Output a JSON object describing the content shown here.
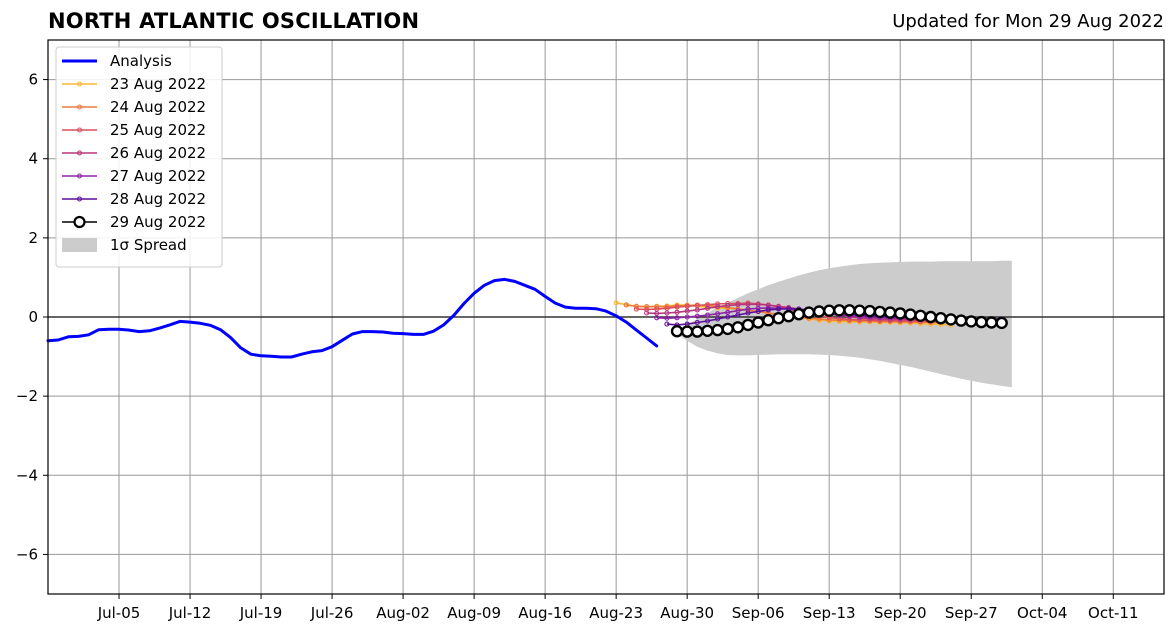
{
  "header": {
    "title": "NORTH ATLANTIC OSCILLATION",
    "updated": "Updated for Mon 29 Aug 2022"
  },
  "chart_data": {
    "type": "line",
    "title": "NORTH ATLANTIC OSCILLATION",
    "subtitle": "Updated for Mon 29 Aug 2022",
    "xlabel": "",
    "ylabel": "",
    "xlim": [
      "2022-06-28",
      "2022-10-16"
    ],
    "ylim": [
      -7,
      7
    ],
    "grid": true,
    "legend_position": "top-left",
    "x_ticks": [
      {
        "date": "2022-07-05",
        "label": "Jul-05"
      },
      {
        "date": "2022-07-12",
        "label": "Jul-12"
      },
      {
        "date": "2022-07-19",
        "label": "Jul-19"
      },
      {
        "date": "2022-07-26",
        "label": "Jul-26"
      },
      {
        "date": "2022-08-02",
        "label": "Aug-02"
      },
      {
        "date": "2022-08-09",
        "label": "Aug-09"
      },
      {
        "date": "2022-08-16",
        "label": "Aug-16"
      },
      {
        "date": "2022-08-23",
        "label": "Aug-23"
      },
      {
        "date": "2022-08-30",
        "label": "Aug-30"
      },
      {
        "date": "2022-09-06",
        "label": "Sep-06"
      },
      {
        "date": "2022-09-13",
        "label": "Sep-13"
      },
      {
        "date": "2022-09-20",
        "label": "Sep-20"
      },
      {
        "date": "2022-09-27",
        "label": "Sep-27"
      },
      {
        "date": "2022-10-04",
        "label": "Oct-04"
      },
      {
        "date": "2022-10-11",
        "label": "Oct-11"
      }
    ],
    "y_ticks": [
      {
        "value": 6,
        "label": "6"
      },
      {
        "value": 4,
        "label": "4"
      },
      {
        "value": 2,
        "label": "2"
      },
      {
        "value": 0,
        "label": "0"
      },
      {
        "value": -2,
        "label": "−2"
      },
      {
        "value": -4,
        "label": "−4"
      },
      {
        "value": -6,
        "label": "−6"
      }
    ],
    "series": [
      {
        "name": "Analysis",
        "color": "#0000ff",
        "kind": "analysis",
        "points": [
          [
            "2022-06-28",
            -0.6
          ],
          [
            "2022-06-29",
            -0.58
          ],
          [
            "2022-06-30",
            -0.5
          ],
          [
            "2022-07-01",
            -0.49
          ],
          [
            "2022-07-02",
            -0.45
          ],
          [
            "2022-07-03",
            -0.32
          ],
          [
            "2022-07-04",
            -0.31
          ],
          [
            "2022-07-05",
            -0.31
          ],
          [
            "2022-07-06",
            -0.33
          ],
          [
            "2022-07-07",
            -0.37
          ],
          [
            "2022-07-08",
            -0.35
          ],
          [
            "2022-07-09",
            -0.28
          ],
          [
            "2022-07-10",
            -0.2
          ],
          [
            "2022-07-11",
            -0.11
          ],
          [
            "2022-07-12",
            -0.13
          ],
          [
            "2022-07-13",
            -0.16
          ],
          [
            "2022-07-14",
            -0.21
          ],
          [
            "2022-07-15",
            -0.32
          ],
          [
            "2022-07-16",
            -0.52
          ],
          [
            "2022-07-17",
            -0.78
          ],
          [
            "2022-07-18",
            -0.94
          ],
          [
            "2022-07-19",
            -0.98
          ],
          [
            "2022-07-20",
            -0.99
          ],
          [
            "2022-07-21",
            -1.01
          ],
          [
            "2022-07-22",
            -1.01
          ],
          [
            "2022-07-23",
            -0.94
          ],
          [
            "2022-07-24",
            -0.88
          ],
          [
            "2022-07-25",
            -0.85
          ],
          [
            "2022-07-26",
            -0.75
          ],
          [
            "2022-07-27",
            -0.59
          ],
          [
            "2022-07-28",
            -0.43
          ],
          [
            "2022-07-29",
            -0.37
          ],
          [
            "2022-07-30",
            -0.37
          ],
          [
            "2022-07-31",
            -0.38
          ],
          [
            "2022-08-01",
            -0.41
          ],
          [
            "2022-08-02",
            -0.42
          ],
          [
            "2022-08-03",
            -0.44
          ],
          [
            "2022-08-04",
            -0.44
          ],
          [
            "2022-08-05",
            -0.36
          ],
          [
            "2022-08-06",
            -0.2
          ],
          [
            "2022-08-07",
            0.04
          ],
          [
            "2022-08-08",
            0.34
          ],
          [
            "2022-08-09",
            0.6
          ],
          [
            "2022-08-10",
            0.8
          ],
          [
            "2022-08-11",
            0.92
          ],
          [
            "2022-08-12",
            0.95
          ],
          [
            "2022-08-13",
            0.9
          ],
          [
            "2022-08-14",
            0.8
          ],
          [
            "2022-08-15",
            0.7
          ],
          [
            "2022-08-16",
            0.52
          ],
          [
            "2022-08-17",
            0.35
          ],
          [
            "2022-08-18",
            0.25
          ],
          [
            "2022-08-19",
            0.22
          ],
          [
            "2022-08-20",
            0.22
          ],
          [
            "2022-08-21",
            0.21
          ],
          [
            "2022-08-22",
            0.15
          ],
          [
            "2022-08-23",
            0.03
          ],
          [
            "2022-08-24",
            -0.13
          ],
          [
            "2022-08-25",
            -0.33
          ],
          [
            "2022-08-26",
            -0.53
          ],
          [
            "2022-08-27",
            -0.73
          ]
        ]
      },
      {
        "name": "23 Aug 2022",
        "color": "#f9b738",
        "kind": "forecast",
        "start": "2022-08-23",
        "values": [
          0.36,
          0.31,
          0.27,
          0.26,
          0.27,
          0.28,
          0.3,
          0.3,
          0.27,
          0.25,
          0.23,
          0.22,
          0.2,
          0.17,
          0.14,
          0.1,
          0.06,
          0.02,
          -0.02,
          -0.05,
          -0.08,
          -0.1,
          -0.11,
          -0.12,
          -0.13,
          -0.13,
          -0.14,
          -0.14,
          -0.15,
          -0.15,
          -0.17,
          -0.18,
          -0.19,
          -0.2
        ]
      },
      {
        "name": "24 Aug 2022",
        "color": "#ee7a3a",
        "kind": "forecast",
        "start": "2022-08-24",
        "values": [
          0.3,
          0.27,
          0.26,
          0.26,
          0.26,
          0.28,
          0.29,
          0.3,
          0.29,
          0.27,
          0.24,
          0.2,
          0.17,
          0.14,
          0.1,
          0.06,
          0.03,
          0.0,
          -0.03,
          -0.05,
          -0.07,
          -0.08,
          -0.09,
          -0.1,
          -0.1,
          -0.11,
          -0.11,
          -0.12,
          -0.13,
          -0.13,
          -0.14,
          -0.14,
          -0.15,
          -0.15,
          -0.15
        ]
      },
      {
        "name": "25 Aug 2022",
        "color": "#dc4e5e",
        "kind": "forecast",
        "start": "2022-08-25",
        "values": [
          0.2,
          0.19,
          0.2,
          0.22,
          0.25,
          0.27,
          0.29,
          0.31,
          0.33,
          0.34,
          0.34,
          0.35,
          0.33,
          0.3,
          0.26,
          0.2,
          0.14,
          0.08,
          0.03,
          -0.01,
          -0.04,
          -0.06,
          -0.07,
          -0.08,
          -0.09,
          -0.09,
          -0.1,
          -0.1,
          -0.11,
          -0.11,
          -0.12,
          -0.12,
          -0.12,
          -0.13,
          -0.13
        ]
      },
      {
        "name": "26 Aug 2022",
        "color": "#b6367e",
        "kind": "forecast",
        "start": "2022-08-26",
        "values": [
          0.1,
          0.09,
          0.1,
          0.12,
          0.15,
          0.18,
          0.22,
          0.26,
          0.29,
          0.31,
          0.32,
          0.32,
          0.3,
          0.27,
          0.24,
          0.2,
          0.16,
          0.12,
          0.08,
          0.04,
          0.01,
          -0.02,
          -0.04,
          -0.05,
          -0.06,
          -0.06,
          -0.07,
          -0.07,
          -0.08,
          -0.08,
          -0.08,
          -0.08,
          -0.09,
          -0.09,
          -0.09
        ]
      },
      {
        "name": "27 Aug 2022",
        "color": "#8e24a8",
        "kind": "forecast",
        "start": "2022-08-27",
        "values": [
          -0.02,
          -0.03,
          -0.02,
          0.0,
          0.02,
          0.05,
          0.08,
          0.12,
          0.16,
          0.2,
          0.22,
          0.23,
          0.22,
          0.2,
          0.17,
          0.13,
          0.1,
          0.07,
          0.05,
          0.03,
          0.01,
          0.0,
          -0.01,
          -0.02,
          -0.03,
          -0.04,
          -0.04,
          -0.05,
          -0.05,
          -0.05,
          -0.06,
          -0.06,
          -0.06,
          -0.06,
          -0.06
        ]
      },
      {
        "name": "28 Aug 2022",
        "color": "#5b0f9a",
        "kind": "forecast",
        "start": "2022-08-28",
        "values": [
          -0.18,
          -0.2,
          -0.18,
          -0.14,
          -0.1,
          -0.05,
          0.0,
          0.05,
          0.1,
          0.14,
          0.18,
          0.2,
          0.21,
          0.2,
          0.18,
          0.15,
          0.12,
          0.09,
          0.07,
          0.05,
          0.03,
          0.02,
          0.01,
          0.0,
          -0.01,
          -0.02,
          -0.03,
          -0.03,
          -0.04,
          -0.04,
          -0.05,
          -0.05,
          -0.05,
          -0.05
        ]
      },
      {
        "name": "29 Aug 2022",
        "color": "#000000",
        "kind": "current",
        "start": "2022-08-29",
        "values": [
          -0.36,
          -0.37,
          -0.37,
          -0.35,
          -0.33,
          -0.3,
          -0.26,
          -0.2,
          -0.14,
          -0.08,
          -0.03,
          0.02,
          0.07,
          0.11,
          0.14,
          0.16,
          0.17,
          0.17,
          0.16,
          0.15,
          0.13,
          0.11,
          0.09,
          0.06,
          0.03,
          0.0,
          -0.03,
          -0.06,
          -0.09,
          -0.11,
          -0.13,
          -0.14,
          -0.15
        ]
      }
    ],
    "spread": {
      "name": "1σ Spread",
      "color": "#cccccc",
      "start": "2022-08-29",
      "upper": [
        -0.32,
        -0.2,
        -0.05,
        0.1,
        0.24,
        0.36,
        0.48,
        0.6,
        0.7,
        0.8,
        0.89,
        0.97,
        1.05,
        1.12,
        1.18,
        1.23,
        1.27,
        1.31,
        1.34,
        1.36,
        1.37,
        1.38,
        1.39,
        1.4,
        1.4,
        1.4,
        1.41,
        1.41,
        1.41,
        1.41,
        1.41,
        1.41,
        1.42,
        1.42
      ],
      "lower": [
        -0.42,
        -0.6,
        -0.75,
        -0.85,
        -0.92,
        -0.96,
        -0.97,
        -0.97,
        -0.96,
        -0.95,
        -0.94,
        -0.94,
        -0.94,
        -0.94,
        -0.95,
        -0.96,
        -0.98,
        -1.0,
        -1.03,
        -1.07,
        -1.11,
        -1.16,
        -1.21,
        -1.26,
        -1.32,
        -1.38,
        -1.44,
        -1.5,
        -1.56,
        -1.61,
        -1.66,
        -1.7,
        -1.74,
        -1.78
      ]
    }
  }
}
